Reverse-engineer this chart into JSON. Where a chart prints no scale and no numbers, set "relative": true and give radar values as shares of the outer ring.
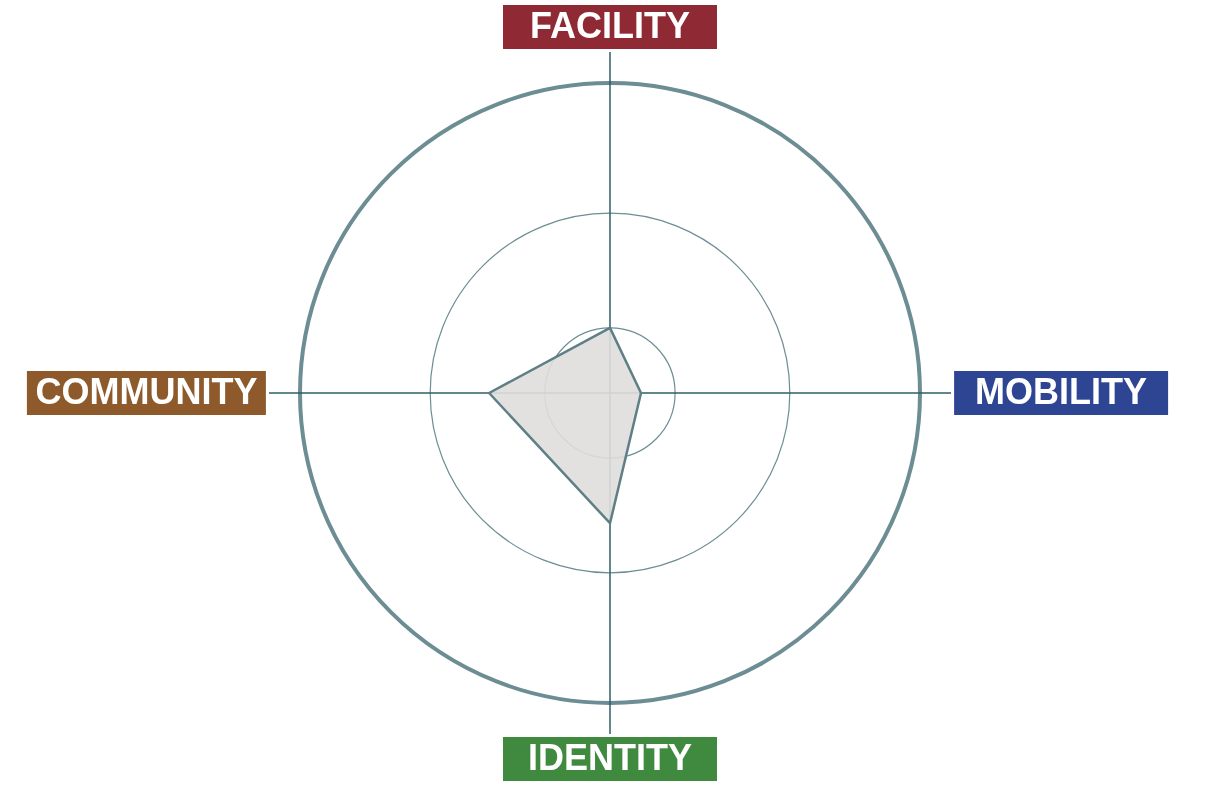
{
  "chart_data": {
    "type": "radar",
    "relative": true,
    "grid": true,
    "categories": [
      "FACILITY",
      "MOBILITY",
      "IDENTITY",
      "COMMUNITY"
    ],
    "colors": [
      "#8f2a35",
      "#2e4593",
      "#3f8a3f",
      "#8e5a2c"
    ],
    "series": [
      {
        "color": "#5f7f86",
        "values": [
          0.21,
          0.1,
          0.42,
          0.39
        ]
      }
    ]
  }
}
